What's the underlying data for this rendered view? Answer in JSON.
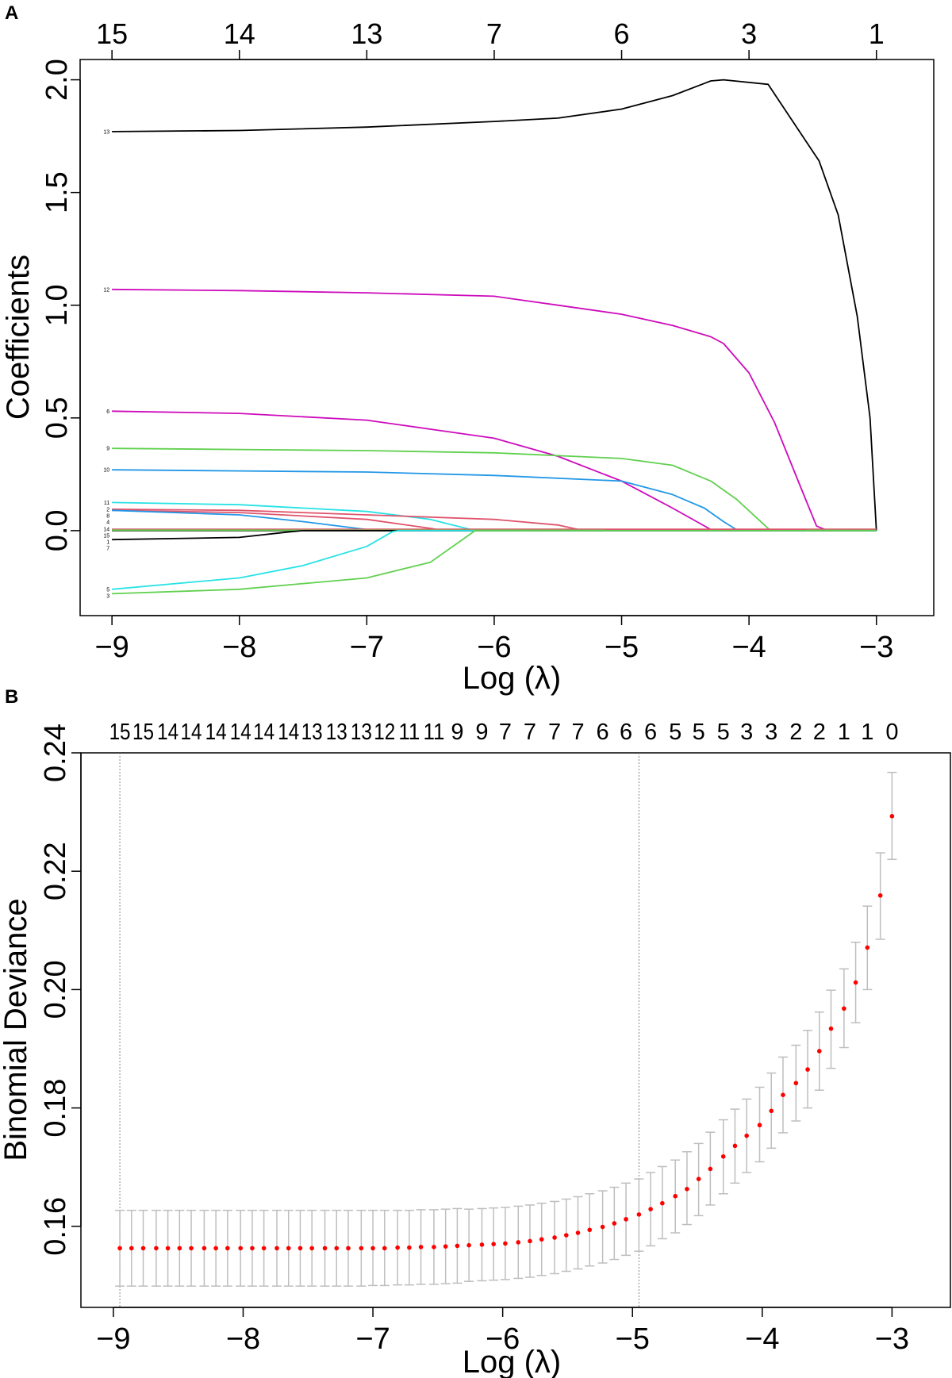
{
  "chart_data": [
    {
      "panel_label": "A",
      "type": "line",
      "xlabel": "Log (λ)",
      "ylabel": "Coefficients",
      "xlim": [
        -9.25,
        -2.55
      ],
      "ylim": [
        -0.377,
        2.09
      ],
      "xticks": [
        -9,
        -8,
        -7,
        -6,
        -5,
        -4,
        -3
      ],
      "yticks": [
        0.0,
        0.5,
        1.0,
        1.5,
        2.0
      ],
      "ytick_labels": [
        "0.0",
        "0.5",
        "1.0",
        "1.5",
        "2.0"
      ],
      "top_axis": {
        "positions": [
          -9,
          -8,
          -7,
          -6,
          -5,
          -4,
          -3
        ],
        "labels": [
          "15",
          "14",
          "13",
          "7",
          "6",
          "3",
          "1"
        ]
      },
      "grid": false,
      "series": [
        {
          "name": "13",
          "color": "#000000",
          "points": [
            [
              -9,
              1.77
            ],
            [
              -8,
              1.775
            ],
            [
              -7,
              1.79
            ],
            [
              -6,
              1.815
            ],
            [
              -5.5,
              1.83
            ],
            [
              -5,
              1.87
            ],
            [
              -4.6,
              1.93
            ],
            [
              -4.3,
              1.995
            ],
            [
              -4.2,
              2.0
            ],
            [
              -3.85,
              1.98
            ],
            [
              -3.45,
              1.64
            ],
            [
              -3.3,
              1.4
            ],
            [
              -3.15,
              0.95
            ],
            [
              -3.05,
              0.5
            ],
            [
              -3.0,
              0
            ]
          ]
        },
        {
          "name": "12",
          "color": "#CD0BBC",
          "points": [
            [
              -9,
              1.07
            ],
            [
              -8,
              1.065
            ],
            [
              -7,
              1.055
            ],
            [
              -6,
              1.04
            ],
            [
              -5.5,
              1.0
            ],
            [
              -5,
              0.96
            ],
            [
              -4.6,
              0.91
            ],
            [
              -4.3,
              0.86
            ],
            [
              -4.2,
              0.83
            ],
            [
              -4,
              0.7
            ],
            [
              -3.8,
              0.48
            ],
            [
              -3.6,
              0.2
            ],
            [
              -3.47,
              0.02
            ],
            [
              -3.38,
              0
            ],
            [
              -3,
              0
            ]
          ]
        },
        {
          "name": "6",
          "color": "#CD0BBC",
          "points": [
            [
              -9,
              0.53
            ],
            [
              -8,
              0.52
            ],
            [
              -7,
              0.49
            ],
            [
              -6.5,
              0.45
            ],
            [
              -6,
              0.41
            ],
            [
              -5.5,
              0.33
            ],
            [
              -5,
              0.22
            ],
            [
              -4.6,
              0.1
            ],
            [
              -4.3,
              0.005
            ],
            [
              -4.2,
              0
            ],
            [
              -3,
              0
            ]
          ]
        },
        {
          "name": "9",
          "color": "#61D04F",
          "points": [
            [
              -9,
              0.365
            ],
            [
              -8,
              0.36
            ],
            [
              -7,
              0.355
            ],
            [
              -6,
              0.345
            ],
            [
              -5,
              0.32
            ],
            [
              -4.6,
              0.29
            ],
            [
              -4.3,
              0.22
            ],
            [
              -4.1,
              0.14
            ],
            [
              -3.83,
              0
            ],
            [
              -3,
              0
            ]
          ]
        },
        {
          "name": "10",
          "color": "#2297E6",
          "points": [
            [
              -9,
              0.27
            ],
            [
              -8,
              0.265
            ],
            [
              -7,
              0.26
            ],
            [
              -6,
              0.245
            ],
            [
              -5,
              0.22
            ],
            [
              -4.6,
              0.16
            ],
            [
              -4.35,
              0.1
            ],
            [
              -4.2,
              0.04
            ],
            [
              -4.1,
              0.005
            ],
            [
              -4.05,
              0
            ],
            [
              -3,
              0
            ]
          ]
        },
        {
          "name": "11",
          "color": "#28E2E5",
          "points": [
            [
              -9,
              0.125
            ],
            [
              -8,
              0.115
            ],
            [
              -7,
              0.085
            ],
            [
              -6.5,
              0.05
            ],
            [
              -6.15,
              0
            ],
            [
              -3,
              0
            ]
          ]
        },
        {
          "name": "2",
          "color": "#DF536B",
          "points": [
            [
              -9,
              0.095
            ],
            [
              -8,
              0.09
            ],
            [
              -7,
              0.07
            ],
            [
              -6,
              0.05
            ],
            [
              -5.5,
              0.025
            ],
            [
              -5.3,
              0
            ],
            [
              -3,
              0
            ]
          ]
        },
        {
          "name": "8",
          "color": "#DF536B",
          "points": [
            [
              -9,
              0.09
            ],
            [
              -8,
              0.08
            ],
            [
              -7,
              0.05
            ],
            [
              -6.5,
              0.01
            ],
            [
              -6.4,
              0
            ],
            [
              -3,
              0
            ]
          ]
        },
        {
          "name": "4",
          "color": "#2297E6",
          "points": [
            [
              -9,
              0.09
            ],
            [
              -8,
              0.07
            ],
            [
              -7.5,
              0.04
            ],
            [
              -7,
              0.005
            ],
            [
              -6.9,
              0
            ],
            [
              -3,
              0
            ]
          ]
        },
        {
          "name": "14",
          "color": "#DF536B",
          "points": [
            [
              -9,
              0.006
            ],
            [
              -3,
              0.006
            ]
          ]
        },
        {
          "name": "1",
          "color": "#000000",
          "points": [
            [
              -9,
              0
            ],
            [
              -3,
              0
            ]
          ]
        },
        {
          "name": "15",
          "color": "#61D04F",
          "points": [
            [
              -9,
              0.002
            ],
            [
              -3,
              0.001
            ]
          ]
        },
        {
          "name": "7",
          "color": "#000000",
          "points": [
            [
              -9,
              -0.04
            ],
            [
              -8,
              -0.03
            ],
            [
              -7.6,
              -0.005
            ],
            [
              -7.5,
              0
            ],
            [
              -3,
              0
            ]
          ]
        },
        {
          "name": "5",
          "color": "#28E2E5",
          "points": [
            [
              -9,
              -0.26
            ],
            [
              -8,
              -0.21
            ],
            [
              -7.5,
              -0.155
            ],
            [
              -7,
              -0.07
            ],
            [
              -6.8,
              -0.005
            ],
            [
              -6.75,
              0
            ],
            [
              -3,
              0
            ]
          ]
        },
        {
          "name": "3",
          "color": "#61D04F",
          "points": [
            [
              -9,
              -0.28
            ],
            [
              -8,
              -0.26
            ],
            [
              -7,
              -0.21
            ],
            [
              -6.5,
              -0.14
            ],
            [
              -6.2,
              -0.02
            ],
            [
              -6.15,
              0
            ],
            [
              -3,
              0
            ]
          ]
        }
      ]
    },
    {
      "panel_label": "B",
      "type": "scatter",
      "xlabel": "Log (λ)",
      "ylabel": "Binomial Deviance",
      "xlim": [
        -9.25,
        -2.55
      ],
      "ylim": [
        0.1463,
        0.24
      ],
      "xticks": [
        -9,
        -8,
        -7,
        -6,
        -5,
        -4,
        -3
      ],
      "yticks": [
        0.16,
        0.18,
        0.2,
        0.22,
        0.24
      ],
      "ytick_labels": [
        "0.16",
        "0.18",
        "0.20",
        "0.22",
        "0.24"
      ],
      "grid": false,
      "vlines": [
        -8.95,
        -4.95
      ],
      "point_color": "#FF0000",
      "errorbar_color": "#BEBEBE",
      "top_axis_labels": [
        "15",
        "15",
        "14",
        "14",
        "14",
        "14",
        "14",
        "14",
        "13",
        "13",
        "13",
        "12",
        "11",
        "11",
        "9",
        "9",
        "7",
        "7",
        "7",
        "7",
        "6",
        "6",
        "6",
        "5",
        "5",
        "5",
        "3",
        "3",
        "2",
        "2",
        "1",
        "1",
        "0"
      ],
      "x": [
        -3.0,
        -3.09,
        -3.19,
        -3.28,
        -3.37,
        -3.47,
        -3.56,
        -3.65,
        -3.74,
        -3.84,
        -3.93,
        -4.02,
        -4.12,
        -4.21,
        -4.3,
        -4.4,
        -4.49,
        -4.58,
        -4.67,
        -4.77,
        -4.86,
        -4.95,
        -5.05,
        -5.14,
        -5.23,
        -5.33,
        -5.42,
        -5.51,
        -5.6,
        -5.7,
        -5.79,
        -5.88,
        -5.98,
        -6.07,
        -6.16,
        -6.26,
        -6.35,
        -6.44,
        -6.53,
        -6.63,
        -6.72,
        -6.81,
        -6.91,
        -7.0,
        -7.09,
        -7.19,
        -7.28,
        -7.37,
        -7.47,
        -7.56,
        -7.65,
        -7.74,
        -7.84,
        -7.93,
        -8.02,
        -8.12,
        -8.21,
        -8.3,
        -8.4,
        -8.49,
        -8.58,
        -8.67,
        -8.77,
        -8.86,
        -8.95
      ],
      "mean": [
        0.2293,
        0.2159,
        0.2071,
        0.2012,
        0.1968,
        0.1934,
        0.1896,
        0.1865,
        0.1842,
        0.1822,
        0.1795,
        0.1771,
        0.1753,
        0.1736,
        0.1718,
        0.1697,
        0.168,
        0.1663,
        0.1651,
        0.1639,
        0.1629,
        0.162,
        0.1612,
        0.1605,
        0.1599,
        0.1594,
        0.1589,
        0.1585,
        0.1581,
        0.1578,
        0.1575,
        0.1573,
        0.1571,
        0.157,
        0.1569,
        0.1568,
        0.1567,
        0.1566,
        0.1565,
        0.1565,
        0.1564,
        0.1564,
        0.1563,
        0.1563,
        0.1563,
        0.1563,
        0.1563,
        0.1563,
        0.1563,
        0.1563,
        0.1563,
        0.1563,
        0.1563,
        0.1563,
        0.1563,
        0.1563,
        0.1563,
        0.1563,
        0.1563,
        0.1563,
        0.1563,
        0.1563,
        0.1563,
        0.1563,
        0.1563
      ],
      "upper": [
        0.2367,
        0.2231,
        0.2141,
        0.208,
        0.2035,
        0.1999,
        0.1962,
        0.1931,
        0.1906,
        0.1886,
        0.1859,
        0.1835,
        0.1815,
        0.1798,
        0.178,
        0.1759,
        0.174,
        0.1726,
        0.1712,
        0.1701,
        0.1691,
        0.168,
        0.1673,
        0.1666,
        0.166,
        0.1655,
        0.165,
        0.1646,
        0.1642,
        0.1639,
        0.1636,
        0.1634,
        0.1632,
        0.1631,
        0.163,
        0.1629,
        0.163,
        0.1629,
        0.1628,
        0.1628,
        0.1627,
        0.1627,
        0.1627,
        0.1627,
        0.1627,
        0.1627,
        0.1627,
        0.1627,
        0.1627,
        0.1627,
        0.1627,
        0.1627,
        0.1627,
        0.1627,
        0.1627,
        0.1627,
        0.1627,
        0.1627,
        0.1627,
        0.1627,
        0.1627,
        0.1627,
        0.1627,
        0.1627,
        0.1627
      ],
      "lower": [
        0.222,
        0.2085,
        0.2,
        0.1944,
        0.1902,
        0.1867,
        0.183,
        0.18,
        0.1778,
        0.1758,
        0.1732,
        0.1709,
        0.1691,
        0.1673,
        0.1655,
        0.1636,
        0.1618,
        0.1603,
        0.1589,
        0.1579,
        0.1567,
        0.1558,
        0.1551,
        0.1544,
        0.1538,
        0.1533,
        0.1528,
        0.1524,
        0.152,
        0.1517,
        0.1514,
        0.1512,
        0.151,
        0.1509,
        0.1508,
        0.1507,
        0.1504,
        0.1503,
        0.1502,
        0.1502,
        0.1501,
        0.1501,
        0.15,
        0.15,
        0.1499,
        0.1499,
        0.1499,
        0.1499,
        0.1499,
        0.1499,
        0.1499,
        0.1499,
        0.1499,
        0.1499,
        0.1499,
        0.1499,
        0.1499,
        0.1499,
        0.1499,
        0.1499,
        0.1499,
        0.1499,
        0.1499,
        0.1499,
        0.1499
      ]
    }
  ]
}
